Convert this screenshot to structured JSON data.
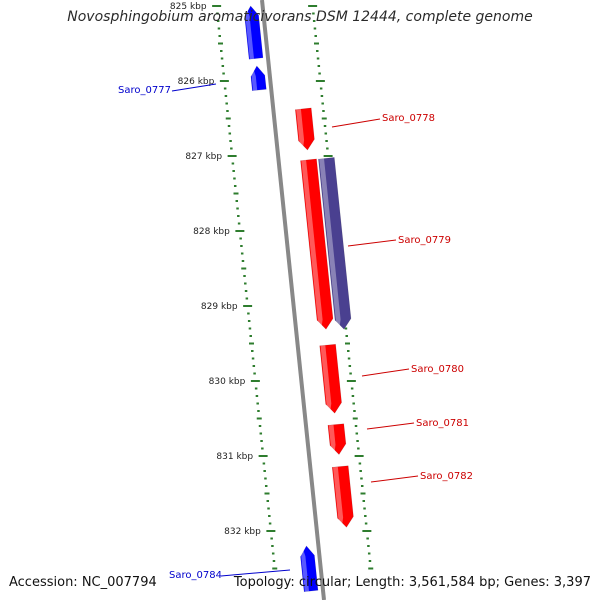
{
  "title": "Novosphingobium aromaticivorans DSM 12444, complete genome",
  "footer": {
    "accession": "Accession: NC_007794",
    "summary": "Topology: circular; Length: 3,561,584 bp; Genes: 3,397"
  },
  "colors": {
    "forward_gene": "#ff0000",
    "reverse_gene": "#0000ff",
    "operon_gene": "#4a4090",
    "backbone": "#888888",
    "tick": "#2e7d2e",
    "forward_label": "#cc0000",
    "reverse_label": "#0000cc"
  },
  "kbp_ticks": [
    "825 kbp",
    "826 kbp",
    "827 kbp",
    "828 kbp",
    "829 kbp",
    "830 kbp",
    "831 kbp",
    "832 kbp"
  ],
  "genes": [
    {
      "name": "",
      "strand": "reverse",
      "start_kbp": 825.0,
      "end_kbp": 825.7
    },
    {
      "name": "Saro_0777",
      "strand": "reverse",
      "start_kbp": 825.8,
      "end_kbp": 826.12
    },
    {
      "name": "Saro_0778",
      "strand": "forward",
      "start_kbp": 826.37,
      "end_kbp": 826.92
    },
    {
      "name": "Saro_0779",
      "strand": "forward",
      "start_kbp": 827.05,
      "end_kbp": 829.31
    },
    {
      "name": "",
      "strand": "operon",
      "start_kbp": 827.03,
      "end_kbp": 829.31
    },
    {
      "name": "Saro_0780",
      "strand": "forward",
      "start_kbp": 829.52,
      "end_kbp": 830.43
    },
    {
      "name": "Saro_0781",
      "strand": "forward",
      "start_kbp": 830.58,
      "end_kbp": 830.98
    },
    {
      "name": "Saro_0782",
      "strand": "forward",
      "start_kbp": 831.14,
      "end_kbp": 831.95
    },
    {
      "name": "Saro_0784",
      "strand": "reverse",
      "start_kbp": 832.2,
      "end_kbp": 832.8
    }
  ]
}
